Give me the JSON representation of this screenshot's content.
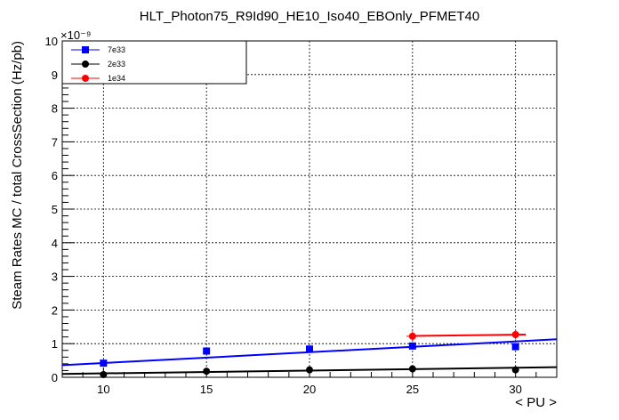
{
  "chart_data": {
    "type": "scatter",
    "title": "HLT_Photon75_R9Id90_HE10_Iso40_EBOnly_PFMET40",
    "xlabel": "< PU >",
    "ylabel": "Steam Rates MC / total CrossSection (Hz/pb)",
    "y_multiplier": "×10⁻⁹",
    "xlim": [
      8,
      32
    ],
    "ylim": [
      0,
      10
    ],
    "x_ticks": [
      10,
      15,
      20,
      25,
      30
    ],
    "y_ticks": [
      0,
      1,
      2,
      3,
      4,
      5,
      6,
      7,
      8,
      9,
      10
    ],
    "grid": true,
    "legend_position": "top-left",
    "series": [
      {
        "name": "7e33",
        "color": "#0000ff",
        "marker": "square",
        "points": [
          {
            "x": 10,
            "y": 0.42,
            "yerr": 0.05
          },
          {
            "x": 15,
            "y": 0.78,
            "yerr": 0.06
          },
          {
            "x": 20,
            "y": 0.84,
            "yerr": 0.06
          },
          {
            "x": 25,
            "y": 0.93,
            "yerr": 0.07
          },
          {
            "x": 30,
            "y": 0.91,
            "yerr": 0.07
          }
        ],
        "fit": {
          "x": [
            8,
            32
          ],
          "y": [
            0.36,
            1.13
          ]
        }
      },
      {
        "name": "2e33",
        "color": "#000000",
        "marker": "circle",
        "points": [
          {
            "x": 10,
            "y": 0.08,
            "yerr": 0.02
          },
          {
            "x": 15,
            "y": 0.18,
            "yerr": 0.03
          },
          {
            "x": 20,
            "y": 0.22,
            "yerr": 0.03
          },
          {
            "x": 25,
            "y": 0.25,
            "yerr": 0.03
          },
          {
            "x": 30,
            "y": 0.22,
            "yerr": 0.03
          }
        ],
        "fit": {
          "x": [
            8,
            32
          ],
          "y": [
            0.1,
            0.3
          ]
        }
      },
      {
        "name": "1e34",
        "color": "#ff0000",
        "marker": "circle",
        "points": [
          {
            "x": 25,
            "y": 1.22,
            "yerr": 0.15,
            "xerr": 0.3
          },
          {
            "x": 30,
            "y": 1.27,
            "yerr": 0.15,
            "xerr": 0.4
          }
        ],
        "fit": {
          "x": [
            25,
            30.5
          ],
          "y": [
            1.23,
            1.27
          ]
        }
      }
    ]
  }
}
